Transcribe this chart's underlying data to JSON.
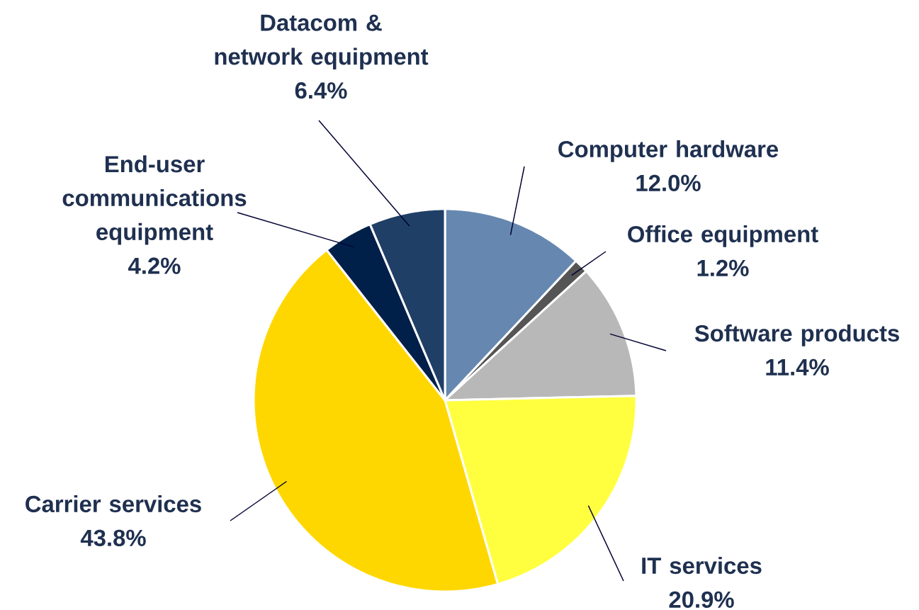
{
  "chart_data": {
    "type": "pie",
    "categories": [
      "Computer hardware",
      "Office equipment",
      "Software products",
      "IT services",
      "Carrier services",
      "End-user communications equipment",
      "Datacom & network equipment"
    ],
    "values": [
      12.0,
      1.2,
      11.4,
      20.9,
      43.8,
      4.2,
      6.4
    ],
    "value_labels": [
      "12.0%",
      "1.2%",
      "11.4%",
      "20.9%",
      "43.8%",
      "4.2%",
      "6.4%"
    ],
    "colors": [
      "#6688b0",
      "#555555",
      "#b8b8b8",
      "#ffff40",
      "#ffd700",
      "#00204a",
      "#1f3f66"
    ]
  }
}
